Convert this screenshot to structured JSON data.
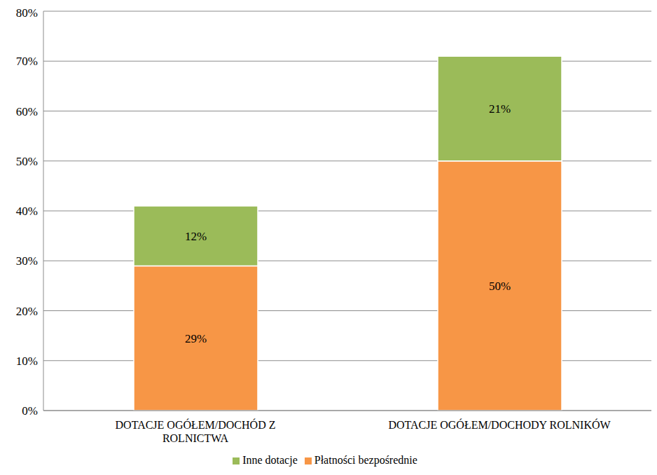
{
  "chart_data": {
    "type": "bar",
    "stacked": true,
    "data_labels": true,
    "grid": true,
    "legend": "bottom",
    "categories": [
      "DOTACJE OGÓŁEM/DOCHÓD Z ROLNICTWA",
      "DOTACJE OGÓŁEM/DOCHODY ROLNIKÓW"
    ],
    "series": [
      {
        "name": "Płatności bezpośrednie",
        "color": "#F79646",
        "values": [
          29,
          50
        ],
        "value_labels": [
          "29%",
          "50%"
        ]
      },
      {
        "name": "Inne dotacje",
        "color": "#9BBB59",
        "values": [
          12,
          21
        ],
        "value_labels": [
          "12%",
          "21%"
        ]
      }
    ],
    "ylim": [
      0,
      80
    ],
    "yticks": [
      {
        "value": 0,
        "label": "0%"
      },
      {
        "value": 10,
        "label": "10%"
      },
      {
        "value": 20,
        "label": "20%"
      },
      {
        "value": 30,
        "label": "30%"
      },
      {
        "value": 40,
        "label": "40%"
      },
      {
        "value": 50,
        "label": "50%"
      },
      {
        "value": 60,
        "label": "60%"
      },
      {
        "value": 70,
        "label": "70%"
      },
      {
        "value": 80,
        "label": "80%"
      }
    ]
  }
}
